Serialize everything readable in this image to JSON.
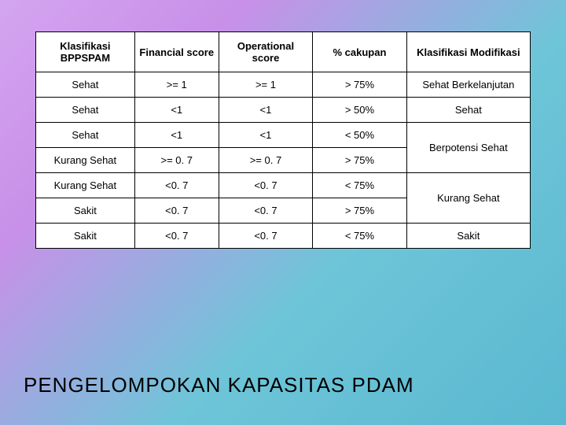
{
  "table": {
    "headers": [
      "Klasifikasi BPPSPAM",
      "Financial score",
      "Operational score",
      "% cakupan",
      "Klasifikasi Modifikasi"
    ],
    "rows": [
      {
        "c0": "Sehat",
        "c1": ">= 1",
        "c2": ">= 1",
        "c3": "> 75%",
        "c4": "Sehat Berkelanjutan",
        "rowspan4": 1
      },
      {
        "c0": "Sehat",
        "c1": "<1",
        "c2": "<1",
        "c3": "> 50%",
        "c4": "Sehat",
        "rowspan4": 1
      },
      {
        "c0": "Sehat",
        "c1": "<1",
        "c2": "<1",
        "c3": "< 50%",
        "c4": "Berpotensi Sehat",
        "rowspan4": 2
      },
      {
        "c0": "Kurang Sehat",
        "c1": ">= 0. 7",
        "c2": ">= 0. 7",
        "c3": "> 75%"
      },
      {
        "c0": "Kurang Sehat",
        "c1": "<0. 7",
        "c2": "<0. 7",
        "c3": "< 75%",
        "c4": "Kurang Sehat",
        "rowspan4": 2
      },
      {
        "c0": "Sakit",
        "c1": "<0. 7",
        "c2": "<0. 7",
        "c3": "> 75%"
      },
      {
        "c0": "Sakit",
        "c1": "<0. 7",
        "c2": "<0. 7",
        "c3": "< 75%",
        "c4": "Sakit",
        "rowspan4": 1
      }
    ],
    "col_widths": [
      "20%",
      "17%",
      "19%",
      "19%",
      "25%"
    ]
  },
  "title": "PENGELOMPOKAN KAPASITAS PDAM",
  "colors": {
    "gradient_start": "#d4a5f0",
    "gradient_end": "#5ab8d0",
    "cell_bg": "#ffffff",
    "border": "#000000",
    "text": "#000000"
  },
  "fonts": {
    "cell_size": 13,
    "title_size": 26
  }
}
